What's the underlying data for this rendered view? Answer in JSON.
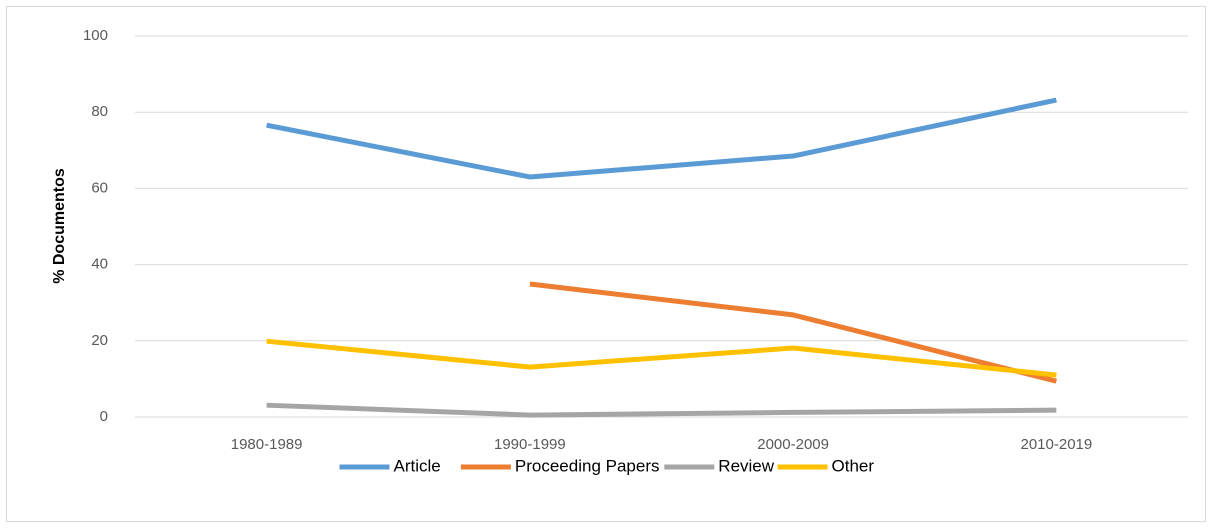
{
  "chart_data": {
    "type": "line",
    "ylabel": "% Documentos",
    "categories": [
      "1980-1989",
      "1990-1999",
      "2000-2009",
      "2010-2019"
    ],
    "series": [
      {
        "name": "Article",
        "color": "#5b9bd5",
        "values": [
          76.6,
          63,
          68.5,
          83.2
        ]
      },
      {
        "name": "Proceeding Papers",
        "color": "#ed7d31",
        "values": [
          null,
          34.9,
          26.8,
          9.4
        ]
      },
      {
        "name": "Review",
        "color": "#a5a5a5",
        "values": [
          3.1,
          0.5,
          1.2,
          1.8
        ]
      },
      {
        "name": "Other",
        "color": "#ffc000",
        "values": [
          19.9,
          13.1,
          18.1,
          11
        ]
      }
    ],
    "ylim": [
      0,
      100
    ],
    "yticks": [
      0,
      20,
      40,
      60,
      80,
      100
    ],
    "grid": true,
    "legend": "bottom"
  }
}
